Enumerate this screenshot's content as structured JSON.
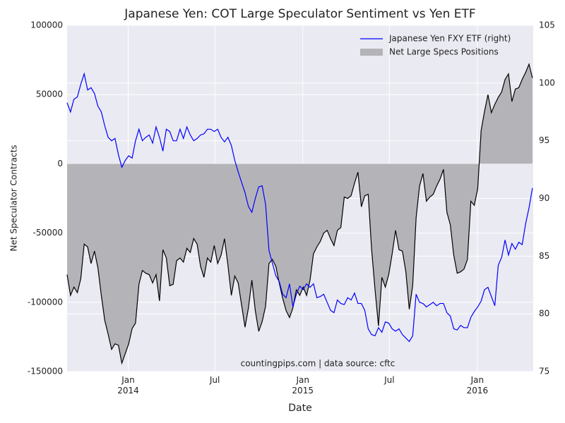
{
  "chart_data": {
    "type": "line",
    "title": "Japanese Yen: COT Large Speculator Sentiment vs Yen ETF",
    "x_label": "Date",
    "y_label": "Net Speculator Contracts",
    "annotation": "countingpips.com | data source: cftc",
    "legend": "upper right",
    "grid": true,
    "background": "#eaeaf2",
    "xlim": [
      2013.65,
      2016.32
    ],
    "xticks": [
      {
        "value": 2014.0,
        "label": "Jan\n2014"
      },
      {
        "value": 2014.496,
        "label": "Jul"
      },
      {
        "value": 2015.0,
        "label": "Jan\n2015"
      },
      {
        "value": 2015.496,
        "label": "Jul"
      },
      {
        "value": 2016.0,
        "label": "Jan\n2016"
      }
    ],
    "ylim": [
      -150000,
      100000
    ],
    "yticks": [
      -150000,
      -100000,
      -50000,
      0,
      50000,
      100000
    ],
    "y2lim": [
      75,
      105
    ],
    "y2ticks": [
      75,
      80,
      85,
      90,
      95,
      100,
      105
    ],
    "x": [
      2013.65,
      2013.6696,
      2013.6892,
      2013.7088,
      2013.7284,
      2013.748,
      2013.7676,
      2013.7872,
      2013.8068,
      2013.8264,
      2013.846,
      2013.8656,
      2013.8852,
      2013.9048,
      2013.9244,
      2013.944,
      2013.9636,
      2013.9832,
      2014.0028,
      2014.0224,
      2014.042,
      2014.0616,
      2014.0812,
      2014.1008,
      2014.1204,
      2014.14,
      2014.1596,
      2014.1792,
      2014.1988,
      2014.2184,
      2014.238,
      2014.2576,
      2014.2772,
      2014.2968,
      2014.3164,
      2014.336,
      2014.3556,
      2014.3752,
      2014.3948,
      2014.4144,
      2014.434,
      2014.4536,
      2014.4732,
      2014.4928,
      2014.5124,
      2014.532,
      2014.5516,
      2014.5712,
      2014.5908,
      2014.6104,
      2014.63,
      2014.6496,
      2014.6692,
      2014.6888,
      2014.7084,
      2014.728,
      2014.7476,
      2014.7672,
      2014.7868,
      2014.8064,
      2014.826,
      2014.8456,
      2014.8652,
      2014.8848,
      2014.9044,
      2014.924,
      2014.9436,
      2014.9632,
      2014.9828,
      2015.0024,
      2015.022,
      2015.0416,
      2015.0612,
      2015.0808,
      2015.1004,
      2015.12,
      2015.1396,
      2015.1592,
      2015.1788,
      2015.1984,
      2015.218,
      2015.2376,
      2015.2572,
      2015.2768,
      2015.2964,
      2015.316,
      2015.3356,
      2015.3552,
      2015.3748,
      2015.3944,
      2015.414,
      2015.4336,
      2015.4532,
      2015.4728,
      2015.4924,
      2015.512,
      2015.5316,
      2015.5512,
      2015.5708,
      2015.5904,
      2015.61,
      2015.6296,
      2015.6492,
      2015.6688,
      2015.6884,
      2015.708,
      2015.7276,
      2015.7472,
      2015.7668,
      2015.7864,
      2015.806,
      2015.8256,
      2015.8452,
      2015.8648,
      2015.8844,
      2015.904,
      2015.9236,
      2015.9432,
      2015.9628,
      2015.9824,
      2016.002,
      2016.0216,
      2016.0412,
      2016.0608,
      2016.0804,
      2016.1,
      2016.1196,
      2016.1392,
      2016.1588,
      2016.1784,
      2016.198,
      2016.2176,
      2016.2372,
      2016.2568,
      2016.2764,
      2016.296,
      2016.3156
    ],
    "series": [
      {
        "name": "Japanese Yen FXY ETF (right)",
        "type": "line",
        "axis": "y2",
        "color": "#0000ff",
        "values": [
          98.3,
          97.5,
          98.6,
          98.8,
          99.9,
          100.8,
          99.4,
          99.6,
          99.1,
          98.0,
          97.5,
          96.3,
          95.3,
          95.0,
          95.2,
          93.8,
          92.7,
          93.3,
          93.7,
          93.5,
          95.0,
          96.0,
          95.0,
          95.3,
          95.5,
          94.8,
          96.2,
          95.3,
          94.1,
          96.0,
          95.8,
          95.0,
          95.0,
          96.0,
          95.2,
          96.2,
          95.5,
          95.0,
          95.2,
          95.5,
          95.6,
          96.0,
          96.0,
          95.8,
          96.0,
          95.3,
          94.9,
          95.3,
          94.6,
          93.3,
          92.3,
          91.4,
          90.5,
          89.3,
          88.8,
          90.0,
          91.0,
          91.1,
          89.5,
          85.5,
          84.4,
          83.3,
          82.8,
          81.7,
          81.4,
          82.6,
          80.6,
          81.7,
          82.4,
          82.1,
          82.6,
          82.3,
          82.6,
          81.4,
          81.5,
          81.7,
          81.0,
          80.3,
          80.1,
          81.2,
          80.9,
          80.8,
          81.4,
          81.2,
          81.8,
          80.9,
          80.9,
          80.3,
          78.7,
          78.2,
          78.1,
          78.8,
          78.4,
          79.3,
          79.2,
          78.7,
          78.5,
          78.7,
          78.2,
          77.9,
          77.6,
          78.1,
          81.7,
          81.0,
          80.9,
          80.6,
          80.8,
          81.0,
          80.7,
          80.9,
          80.9,
          80.1,
          79.8,
          78.7,
          78.6,
          79.0,
          78.8,
          78.8,
          79.7,
          80.2,
          80.6,
          81.1,
          82.1,
          82.3,
          81.5,
          80.7,
          84.2,
          84.9,
          86.4,
          85.1,
          86.1,
          85.6,
          86.2,
          86.0,
          87.8,
          89.2,
          90.9
        ]
      },
      {
        "name": "Net Large Specs Positions",
        "type": "area",
        "color": "#b4b4b8",
        "line_color": "#000000",
        "values": [
          -80000,
          -95000,
          -89000,
          -93000,
          -83000,
          -58000,
          -60000,
          -72000,
          -63000,
          -75000,
          -95000,
          -113000,
          -123000,
          -134000,
          -130000,
          -131000,
          -144000,
          -137000,
          -130000,
          -119000,
          -115000,
          -87000,
          -77000,
          -79000,
          -80000,
          -86000,
          -80000,
          -99000,
          -62000,
          -68000,
          -88000,
          -87000,
          -70000,
          -68000,
          -71000,
          -61000,
          -64000,
          -54000,
          -58000,
          -74000,
          -82000,
          -68000,
          -71000,
          -59000,
          -72000,
          -66000,
          -54000,
          -73000,
          -95000,
          -81000,
          -86000,
          -102000,
          -118000,
          -104000,
          -84000,
          -106000,
          -121000,
          -114000,
          -103000,
          -72000,
          -69000,
          -74000,
          -86000,
          -97000,
          -106000,
          -111000,
          -104000,
          -91000,
          -95000,
          -89000,
          -95000,
          -84000,
          -65000,
          -60000,
          -56000,
          -50000,
          -48000,
          -54000,
          -59000,
          -48000,
          -46000,
          -24000,
          -25000,
          -23000,
          -14000,
          -6000,
          -31000,
          -23000,
          -22000,
          -62000,
          -91000,
          -117000,
          -82000,
          -89000,
          -80000,
          -65000,
          -48000,
          -62000,
          -63000,
          -78000,
          -105000,
          -88000,
          -39000,
          -16000,
          -7000,
          -27000,
          -24000,
          -22000,
          -16000,
          -11000,
          -4000,
          -35000,
          -44000,
          -66000,
          -79000,
          -78000,
          -76000,
          -69000,
          -27000,
          -30000,
          -18000,
          24000,
          38000,
          50000,
          37000,
          43000,
          48000,
          52000,
          61000,
          65000,
          45000,
          54000,
          55000,
          61000,
          66000,
          72000,
          62000
        ]
      }
    ]
  }
}
